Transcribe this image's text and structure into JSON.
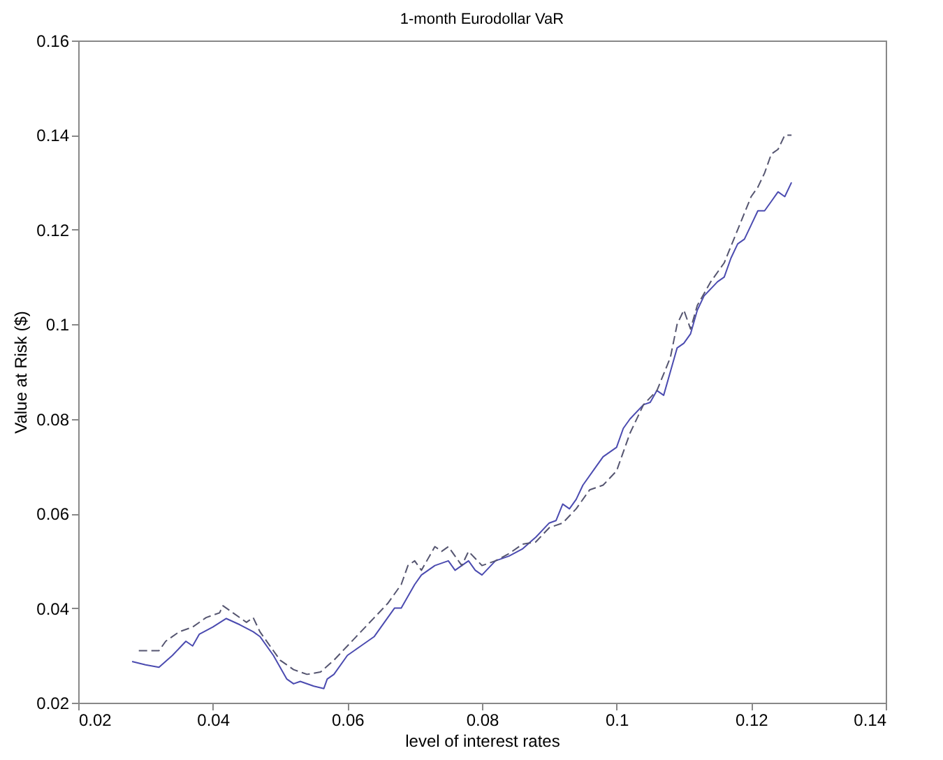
{
  "chart_data": {
    "type": "line",
    "title": "1-month Eurodollar VaR",
    "xlabel": "level of interest rates",
    "ylabel": "Value at Risk ($)",
    "xlim": [
      0.02,
      0.14
    ],
    "xticks": [
      {
        "value": 0.02,
        "label": "0.02"
      },
      {
        "value": 0.04,
        "label": "0.04"
      },
      {
        "value": 0.06,
        "label": "0.06"
      },
      {
        "value": 0.08,
        "label": "0.08"
      },
      {
        "value": 0.1,
        "label": "0.1"
      },
      {
        "value": 0.12,
        "label": "0.12"
      },
      {
        "value": 0.14,
        "label": "0.14"
      }
    ],
    "ylim": [
      0.02,
      0.16
    ],
    "yticks": [
      {
        "value": 0.02,
        "label": "0.02"
      },
      {
        "value": 0.04,
        "label": "0.04"
      },
      {
        "value": 0.06,
        "label": "0.06"
      },
      {
        "value": 0.08,
        "label": "0.08"
      },
      {
        "value": 0.1,
        "label": "0.1"
      },
      {
        "value": 0.12,
        "label": "0.12"
      },
      {
        "value": 0.14,
        "label": "0.14"
      },
      {
        "value": 0.16,
        "label": "0.16"
      }
    ],
    "grid": false,
    "marker": "none",
    "series": [
      {
        "color": "#4b4bb0",
        "line_style": "solid",
        "x": [
          0.028,
          0.03,
          0.032,
          0.034,
          0.036,
          0.037,
          0.038,
          0.04,
          0.042,
          0.044,
          0.046,
          0.047,
          0.049,
          0.051,
          0.052,
          0.053,
          0.055,
          0.0565,
          0.057,
          0.058,
          0.06,
          0.061,
          0.062,
          0.064,
          0.066,
          0.067,
          0.068,
          0.07,
          0.071,
          0.073,
          0.075,
          0.076,
          0.077,
          0.078,
          0.079,
          0.08,
          0.082,
          0.084,
          0.086,
          0.088,
          0.09,
          0.091,
          0.092,
          0.093,
          0.094,
          0.095,
          0.097,
          0.098,
          0.1,
          0.101,
          0.102,
          0.104,
          0.105,
          0.106,
          0.107,
          0.108,
          0.109,
          0.11,
          0.111,
          0.112,
          0.113,
          0.115,
          0.116,
          0.117,
          0.118,
          0.119,
          0.12,
          0.121,
          0.122,
          0.123,
          0.124,
          0.125,
          0.126
        ],
        "values": [
          0.0287,
          0.028,
          0.0275,
          0.03,
          0.033,
          0.032,
          0.0345,
          0.036,
          0.0378,
          0.0365,
          0.035,
          0.034,
          0.03,
          0.025,
          0.024,
          0.0245,
          0.0235,
          0.023,
          0.025,
          0.026,
          0.03,
          0.031,
          0.032,
          0.034,
          0.038,
          0.04,
          0.04,
          0.045,
          0.047,
          0.049,
          0.05,
          0.048,
          0.049,
          0.05,
          0.048,
          0.047,
          0.05,
          0.051,
          0.0525,
          0.055,
          0.058,
          0.0585,
          0.062,
          0.061,
          0.063,
          0.066,
          0.07,
          0.072,
          0.074,
          0.078,
          0.08,
          0.083,
          0.0835,
          0.086,
          0.085,
          0.09,
          0.095,
          0.096,
          0.098,
          0.103,
          0.106,
          0.109,
          0.11,
          0.114,
          0.117,
          0.118,
          0.121,
          0.124,
          0.124,
          0.126,
          0.128,
          0.127,
          0.13
        ]
      },
      {
        "color": "#555570",
        "line_style": "dashed",
        "x": [
          0.029,
          0.032,
          0.033,
          0.035,
          0.037,
          0.039,
          0.041,
          0.0415,
          0.043,
          0.045,
          0.046,
          0.047,
          0.049,
          0.05,
          0.052,
          0.054,
          0.056,
          0.058,
          0.06,
          0.062,
          0.064,
          0.066,
          0.068,
          0.069,
          0.07,
          0.071,
          0.073,
          0.074,
          0.075,
          0.076,
          0.077,
          0.078,
          0.08,
          0.082,
          0.084,
          0.086,
          0.088,
          0.09,
          0.092,
          0.094,
          0.096,
          0.098,
          0.1,
          0.102,
          0.104,
          0.106,
          0.108,
          0.109,
          0.11,
          0.111,
          0.112,
          0.114,
          0.116,
          0.118,
          0.12,
          0.121,
          0.122,
          0.123,
          0.124,
          0.125,
          0.126
        ],
        "values": [
          0.031,
          0.031,
          0.033,
          0.035,
          0.036,
          0.038,
          0.039,
          0.0405,
          0.039,
          0.037,
          0.038,
          0.035,
          0.031,
          0.029,
          0.027,
          0.026,
          0.0265,
          0.029,
          0.032,
          0.035,
          0.038,
          0.041,
          0.045,
          0.049,
          0.05,
          0.048,
          0.053,
          0.052,
          0.053,
          0.051,
          0.049,
          0.052,
          0.049,
          0.05,
          0.0515,
          0.0535,
          0.054,
          0.057,
          0.058,
          0.061,
          0.065,
          0.066,
          0.069,
          0.077,
          0.083,
          0.086,
          0.093,
          0.1,
          0.103,
          0.099,
          0.104,
          0.109,
          0.113,
          0.12,
          0.127,
          0.129,
          0.132,
          0.136,
          0.137,
          0.14,
          0.14
        ]
      }
    ]
  }
}
